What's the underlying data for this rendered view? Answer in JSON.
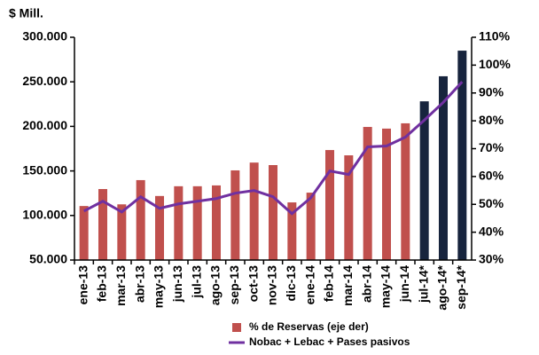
{
  "chart_data": {
    "type": "bar-line",
    "y_unit_label": "$ Mill.",
    "categories": [
      "ene-13",
      "feb-13",
      "mar-13",
      "abr-13",
      "may-13",
      "jun-13",
      "jul-13",
      "ago-13",
      "sep-13",
      "oct-13",
      "nov-13",
      "dic-13",
      "ene-14",
      "feb-14",
      "mar-14",
      "abr-14",
      "may-14",
      "jun-14",
      "jul-14*",
      "ago-14*",
      "sep-14*"
    ],
    "series": [
      {
        "name": "% de Reservas (eje der)",
        "type": "bar",
        "axis": "y2",
        "color": "#c0504d",
        "colors": [
          "#c0504d",
          "#c0504d",
          "#c0504d",
          "#c0504d",
          "#c0504d",
          "#c0504d",
          "#c0504d",
          "#c0504d",
          "#c0504d",
          "#c0504d",
          "#c0504d",
          "#c0504d",
          "#c0504d",
          "#c0504d",
          "#c0504d",
          "#c0504d",
          "#c0504d",
          "#c0504d",
          "#17243d",
          "#17243d",
          "#17243d"
        ],
        "values": [
          49.4,
          55.5,
          50,
          58.7,
          53,
          56.5,
          56.5,
          56.8,
          62.2,
          65,
          64.1,
          50.7,
          54.2,
          69.5,
          67.6,
          77.8,
          77.2,
          79.1,
          87,
          96,
          105.2
        ]
      },
      {
        "name": "Nobac + Lebac + Pases pasivos",
        "type": "line",
        "axis": "y",
        "color": "#7030a0",
        "values": [
          105000,
          116000,
          104000,
          121000,
          108000,
          113000,
          116000,
          119000,
          125000,
          128000,
          121000,
          102000,
          120000,
          150000,
          146000,
          177000,
          178000,
          188000,
          207000,
          227000,
          250000
        ]
      }
    ],
    "ylim": [
      50000,
      300000
    ],
    "yticks": [
      {
        "value": 50000,
        "label": "50.000"
      },
      {
        "value": 100000,
        "label": "100.000"
      },
      {
        "value": 150000,
        "label": "150.000"
      },
      {
        "value": 200000,
        "label": "200.000"
      },
      {
        "value": 250000,
        "label": "250.000"
      },
      {
        "value": 300000,
        "label": "300.000"
      }
    ],
    "y2lim": [
      30,
      110
    ],
    "y2ticks": [
      {
        "value": 30,
        "label": "30%"
      },
      {
        "value": 40,
        "label": "40%"
      },
      {
        "value": 50,
        "label": "50%"
      },
      {
        "value": 60,
        "label": "60%"
      },
      {
        "value": 70,
        "label": "70%"
      },
      {
        "value": 80,
        "label": "80%"
      },
      {
        "value": 90,
        "label": "90%"
      },
      {
        "value": 100,
        "label": "100%"
      },
      {
        "value": 110,
        "label": "110%"
      }
    ]
  }
}
